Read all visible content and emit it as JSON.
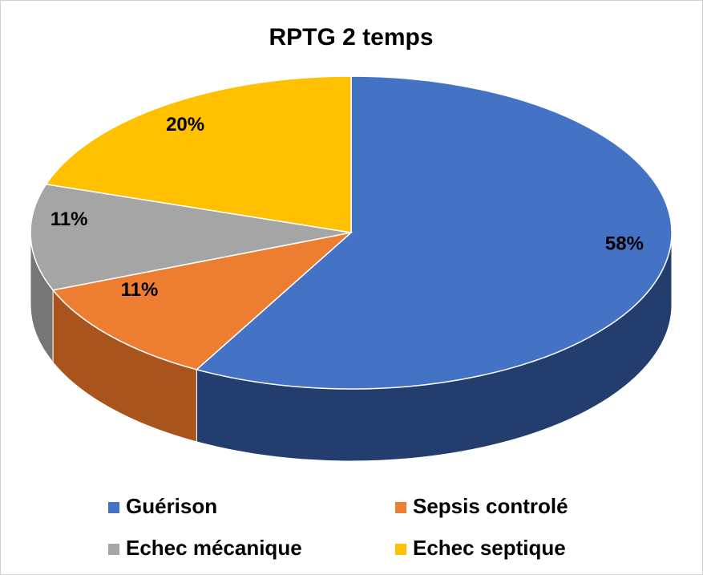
{
  "chart_data": {
    "type": "pie",
    "title": "RPTG 2 temps",
    "categories": [
      "Guérison",
      "Sepsis controlé",
      "Echec mécanique",
      "Echec septique"
    ],
    "values": [
      58,
      11,
      11,
      20
    ],
    "value_labels": [
      "58%",
      "11%",
      "11%",
      "20%"
    ],
    "colors": [
      "#4472c4",
      "#ed7d31",
      "#a5a5a5",
      "#ffc000"
    ],
    "side_colors": [
      "#233e6e",
      "#a8541c",
      "#767676",
      "#b88a00"
    ],
    "legend": "bottom"
  }
}
